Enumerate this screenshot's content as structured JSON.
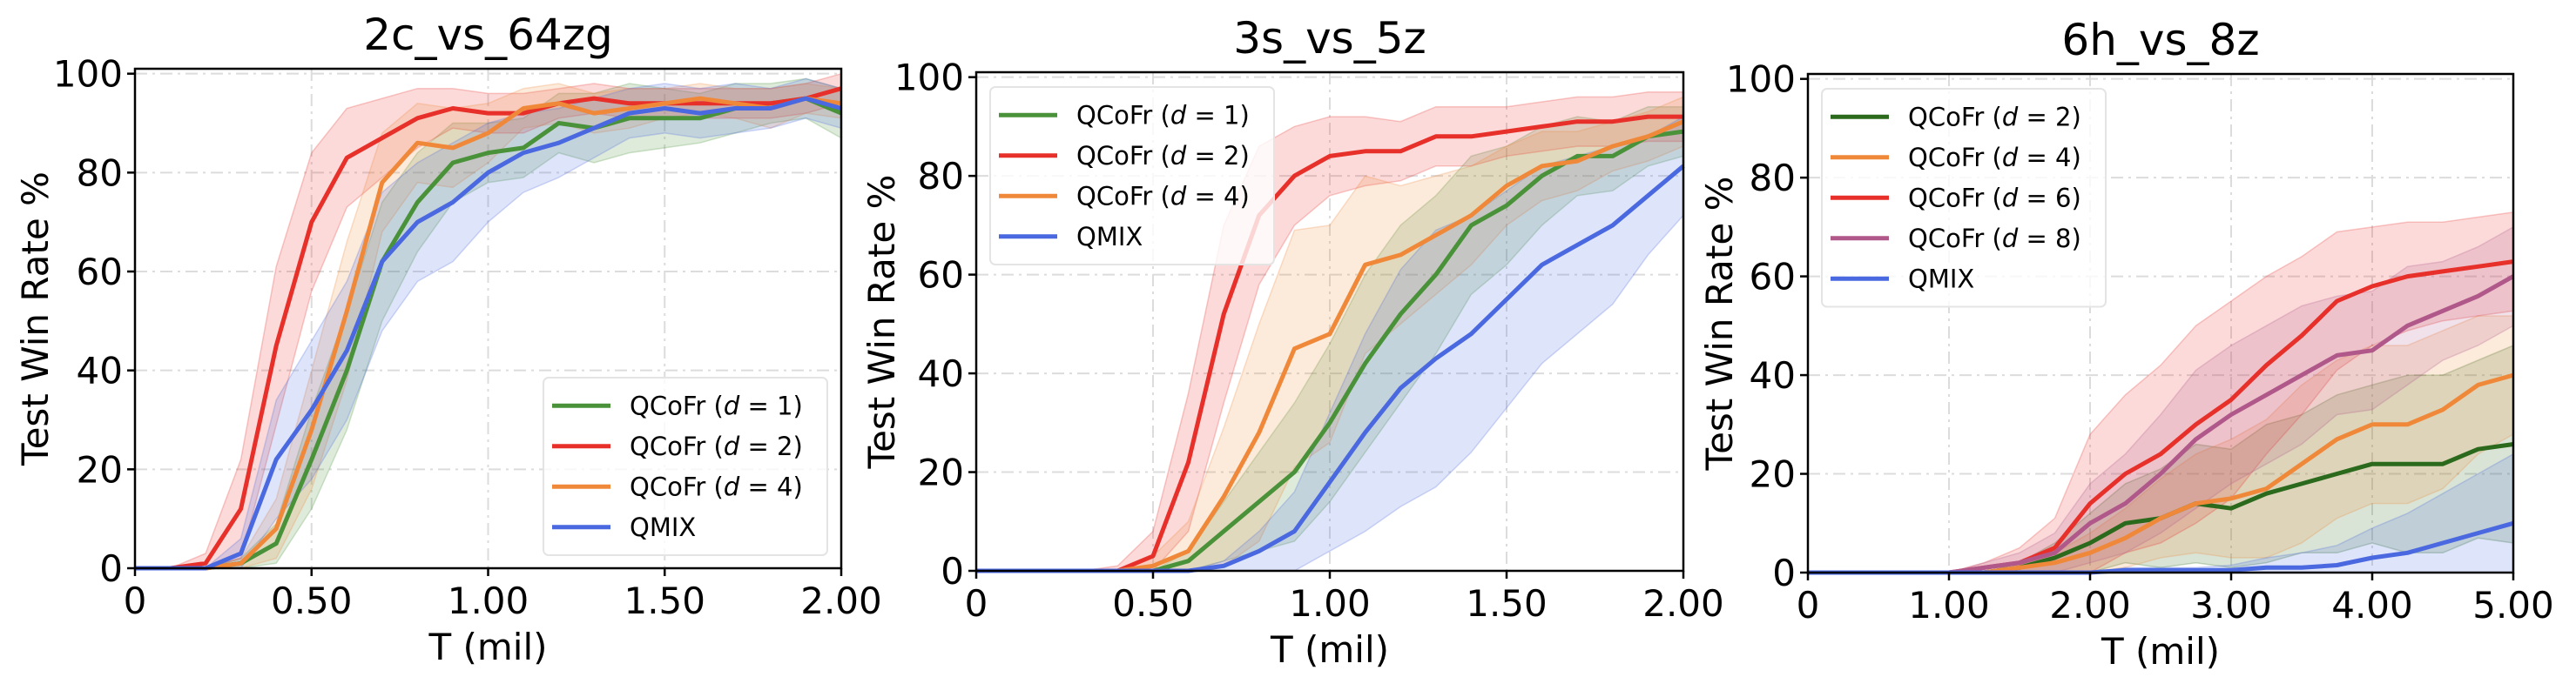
{
  "chart_data": [
    {
      "type": "line",
      "title": "2c_vs_64zg",
      "xlabel": "T (mil)",
      "ylabel": "Test Win Rate %",
      "xlim": [
        0,
        2.0
      ],
      "ylim": [
        0,
        100
      ],
      "xticks": [
        0,
        0.5,
        1.0,
        1.5,
        2.0
      ],
      "xtick_labels": [
        "0",
        "0.50",
        "1.00",
        "1.50",
        "2.00"
      ],
      "yticks": [
        0,
        20,
        40,
        60,
        80,
        100
      ],
      "ytick_labels": [
        "0",
        "20",
        "40",
        "60",
        "80",
        "100"
      ],
      "grid": true,
      "legend_position": "lower-right",
      "x": [
        0,
        0.1,
        0.2,
        0.3,
        0.4,
        0.5,
        0.6,
        0.7,
        0.8,
        0.9,
        1.0,
        1.1,
        1.2,
        1.3,
        1.4,
        1.5,
        1.6,
        1.7,
        1.8,
        1.9,
        2.0
      ],
      "series": [
        {
          "name": "QCoFr (d = 1)",
          "color": "#4a923a",
          "values": [
            0,
            0,
            0,
            1,
            5,
            22,
            40,
            62,
            74,
            82,
            84,
            85,
            90,
            89,
            91,
            91,
            91,
            93,
            94,
            95,
            92
          ],
          "spread": [
            0,
            0,
            0,
            1,
            4,
            10,
            12,
            12,
            10,
            8,
            6,
            6,
            6,
            7,
            7,
            6,
            5,
            5,
            4,
            4,
            5
          ]
        },
        {
          "name": "QCoFr (d = 2)",
          "color": "#e8302a",
          "values": [
            0,
            0,
            1,
            12,
            45,
            70,
            83,
            87,
            91,
            93,
            92,
            92,
            94,
            95,
            94,
            94,
            94,
            94,
            94,
            95,
            97
          ],
          "spread": [
            0,
            0,
            2,
            10,
            16,
            14,
            10,
            8,
            6,
            4,
            4,
            4,
            3,
            3,
            3,
            3,
            3,
            3,
            3,
            3,
            3
          ]
        },
        {
          "name": "QCoFr (d = 4)",
          "color": "#f0883a",
          "values": [
            0,
            0,
            0,
            1,
            8,
            28,
            52,
            78,
            86,
            85,
            88,
            93,
            94,
            92,
            93,
            94,
            95,
            94,
            93,
            95,
            94
          ],
          "spread": [
            0,
            0,
            0,
            1,
            6,
            12,
            14,
            10,
            8,
            8,
            6,
            4,
            4,
            4,
            4,
            3,
            3,
            3,
            4,
            3,
            3
          ]
        },
        {
          "name": "QMIX",
          "color": "#4a68e0",
          "values": [
            0,
            0,
            0,
            3,
            22,
            32,
            44,
            62,
            70,
            74,
            80,
            84,
            86,
            89,
            92,
            93,
            92,
            93,
            93,
            95,
            93
          ],
          "spread": [
            0,
            0,
            0,
            3,
            12,
            14,
            14,
            14,
            12,
            12,
            10,
            8,
            7,
            6,
            5,
            5,
            5,
            5,
            4,
            4,
            4
          ]
        }
      ]
    },
    {
      "type": "line",
      "title": "3s_vs_5z",
      "xlabel": "T (mil)",
      "ylabel": "Test Win Rate %",
      "xlim": [
        0,
        2.0
      ],
      "ylim": [
        0,
        100
      ],
      "xticks": [
        0,
        0.5,
        1.0,
        1.5,
        2.0
      ],
      "xtick_labels": [
        "0",
        "0.50",
        "1.00",
        "1.50",
        "2.00"
      ],
      "yticks": [
        0,
        20,
        40,
        60,
        80,
        100
      ],
      "ytick_labels": [
        "0",
        "20",
        "40",
        "60",
        "80",
        "100"
      ],
      "grid": true,
      "legend_position": "upper-left",
      "x": [
        0,
        0.1,
        0.2,
        0.3,
        0.4,
        0.5,
        0.6,
        0.7,
        0.8,
        0.9,
        1.0,
        1.1,
        1.2,
        1.3,
        1.4,
        1.5,
        1.6,
        1.7,
        1.8,
        1.9,
        2.0
      ],
      "series": [
        {
          "name": "QCoFr (d = 1)",
          "color": "#4a923a",
          "values": [
            0,
            0,
            0,
            0,
            0,
            0,
            2,
            8,
            14,
            20,
            30,
            42,
            52,
            60,
            70,
            74,
            80,
            84,
            84,
            88,
            89
          ],
          "spread": [
            0,
            0,
            0,
            0,
            0,
            0,
            2,
            6,
            10,
            14,
            16,
            18,
            18,
            16,
            14,
            12,
            10,
            8,
            7,
            6,
            5
          ]
        },
        {
          "name": "QCoFr (d = 2)",
          "color": "#e8302a",
          "values": [
            0,
            0,
            0,
            0,
            0,
            3,
            22,
            52,
            72,
            80,
            84,
            85,
            85,
            88,
            88,
            89,
            90,
            91,
            91,
            92,
            92
          ],
          "spread": [
            0,
            0,
            0,
            0,
            1,
            5,
            14,
            18,
            14,
            10,
            8,
            7,
            6,
            6,
            6,
            5,
            5,
            5,
            5,
            5,
            5
          ]
        },
        {
          "name": "QCoFr (d = 4)",
          "color": "#f0883a",
          "values": [
            0,
            0,
            0,
            0,
            0,
            1,
            4,
            15,
            28,
            45,
            48,
            62,
            64,
            68,
            72,
            78,
            82,
            83,
            86,
            88,
            91
          ],
          "spread": [
            0,
            0,
            0,
            0,
            0,
            2,
            6,
            14,
            22,
            24,
            22,
            18,
            14,
            12,
            10,
            8,
            7,
            6,
            5,
            5,
            5
          ]
        },
        {
          "name": "QMIX",
          "color": "#4a68e0",
          "values": [
            0,
            0,
            0,
            0,
            0,
            0,
            0,
            1,
            4,
            8,
            18,
            28,
            37,
            43,
            48,
            55,
            62,
            66,
            70,
            76,
            82
          ],
          "spread": [
            0,
            0,
            0,
            0,
            0,
            0,
            0,
            1,
            4,
            8,
            14,
            20,
            24,
            26,
            24,
            22,
            20,
            18,
            16,
            12,
            10
          ]
        }
      ]
    },
    {
      "type": "line",
      "title": "6h_vs_8z",
      "xlabel": "T (mil)",
      "ylabel": "Test Win Rate %",
      "xlim": [
        0,
        5.0
      ],
      "ylim": [
        0,
        100
      ],
      "xticks": [
        0,
        1,
        2,
        3,
        4,
        5
      ],
      "xtick_labels": [
        "0",
        "1.00",
        "2.00",
        "3.00",
        "4.00",
        "5.00"
      ],
      "yticks": [
        0,
        20,
        40,
        60,
        80,
        100
      ],
      "ytick_labels": [
        "0",
        "20",
        "40",
        "60",
        "80",
        "100"
      ],
      "grid": true,
      "legend_position": "upper-left",
      "x": [
        0,
        0.25,
        0.5,
        0.75,
        1.0,
        1.25,
        1.5,
        1.75,
        2.0,
        2.25,
        2.5,
        2.75,
        3.0,
        3.25,
        3.5,
        3.75,
        4.0,
        4.25,
        4.5,
        4.75,
        5.0
      ],
      "series": [
        {
          "name": "QCoFr (d = 2)",
          "color": "#2b6a1c",
          "values": [
            0,
            0,
            0,
            0,
            0,
            0,
            1,
            3,
            6,
            10,
            11,
            14,
            13,
            16,
            18,
            20,
            22,
            22,
            22,
            25,
            26
          ],
          "spread": [
            0,
            0,
            0,
            0,
            0,
            0,
            1,
            3,
            6,
            8,
            10,
            12,
            12,
            14,
            14,
            16,
            16,
            18,
            18,
            18,
            20
          ]
        },
        {
          "name": "QCoFr (d = 4)",
          "color": "#f0883a",
          "values": [
            0,
            0,
            0,
            0,
            0,
            0,
            1,
            2,
            4,
            7,
            11,
            14,
            15,
            17,
            22,
            27,
            30,
            30,
            33,
            38,
            40
          ],
          "spread": [
            0,
            0,
            0,
            0,
            0,
            0,
            1,
            2,
            4,
            6,
            8,
            10,
            12,
            14,
            16,
            16,
            16,
            16,
            16,
            14,
            12
          ]
        },
        {
          "name": "QCoFr (d = 6)",
          "color": "#e8302a",
          "values": [
            0,
            0,
            0,
            0,
            0,
            1,
            2,
            5,
            14,
            20,
            24,
            30,
            35,
            42,
            48,
            55,
            58,
            60,
            61,
            62,
            63
          ],
          "spread": [
            0,
            0,
            0,
            0,
            0,
            1,
            3,
            6,
            14,
            16,
            18,
            20,
            20,
            18,
            16,
            14,
            12,
            11,
            10,
            10,
            10
          ]
        },
        {
          "name": "QCoFr (d = 8)",
          "color": "#b0588a",
          "values": [
            0,
            0,
            0,
            0,
            0,
            1,
            2,
            4,
            10,
            14,
            20,
            27,
            32,
            36,
            40,
            44,
            45,
            50,
            53,
            56,
            60
          ],
          "spread": [
            0,
            0,
            0,
            0,
            0,
            1,
            2,
            4,
            8,
            10,
            12,
            14,
            14,
            14,
            14,
            12,
            12,
            12,
            10,
            10,
            10
          ]
        },
        {
          "name": "QMIX",
          "color": "#4a68e0",
          "values": [
            0,
            0,
            0,
            0,
            0,
            0,
            0,
            0,
            0,
            0.5,
            0.5,
            0.5,
            0.5,
            1,
            1,
            1.5,
            3,
            4,
            6,
            8,
            10
          ],
          "spread": [
            0,
            0,
            0,
            0,
            0,
            0,
            0,
            0,
            0,
            0.5,
            0.5,
            0.5,
            1,
            2,
            3,
            4,
            6,
            8,
            10,
            12,
            14
          ]
        }
      ]
    }
  ]
}
